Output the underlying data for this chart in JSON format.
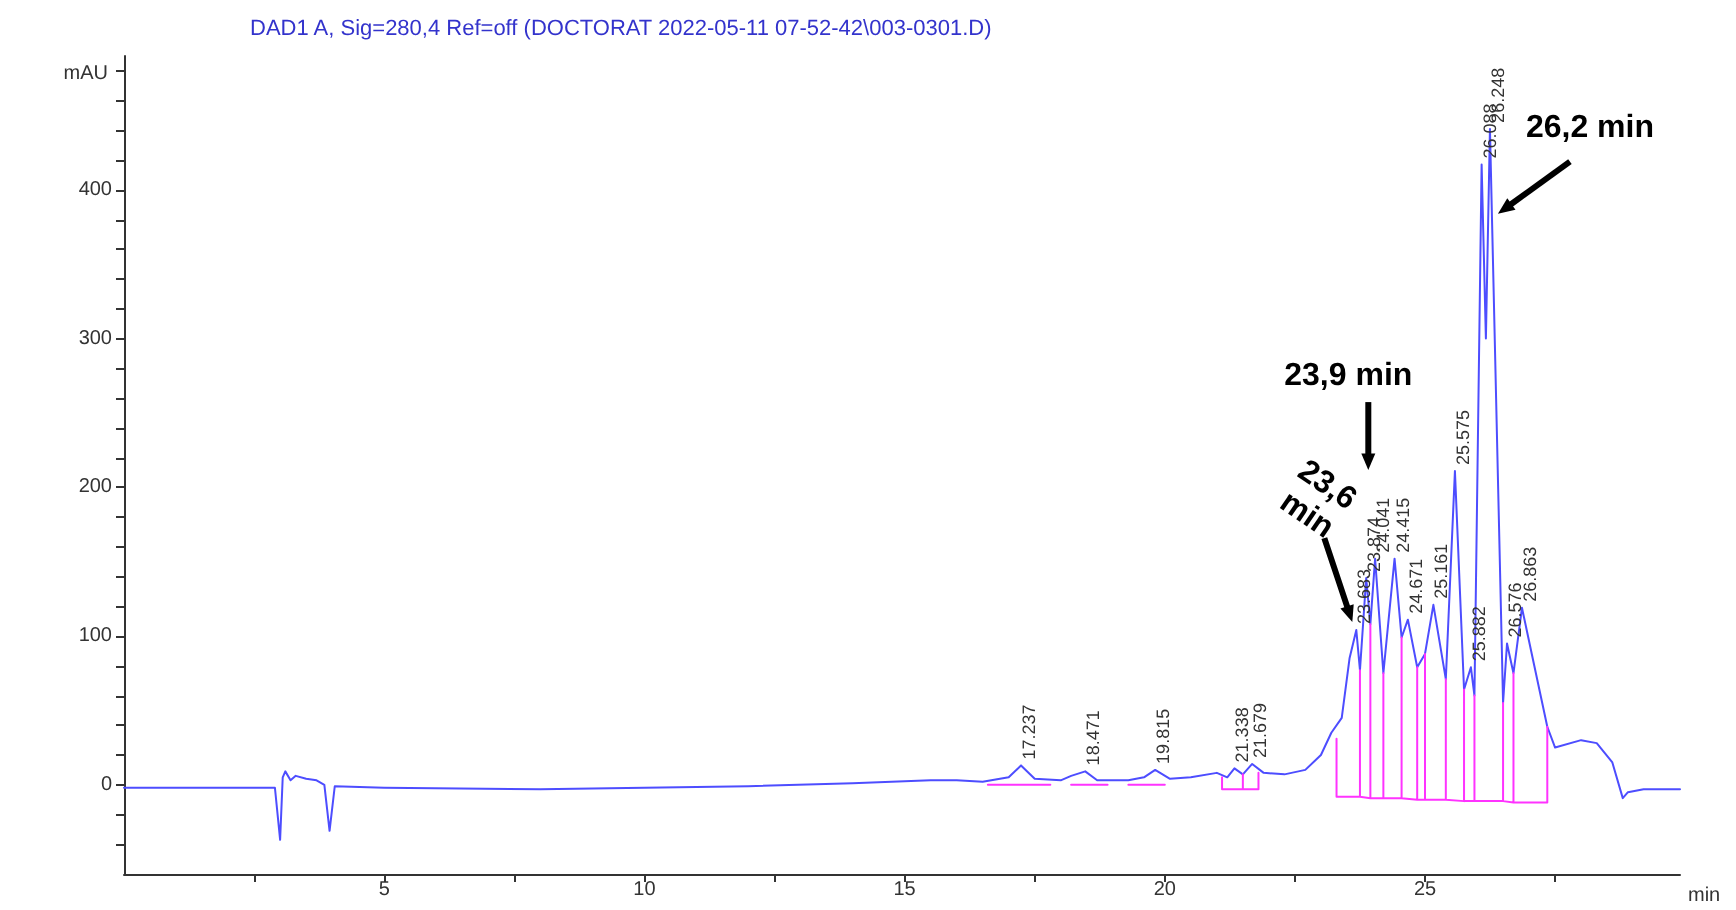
{
  "chart_data": {
    "type": "line",
    "title": "DAD1 A, Sig=280,4 Ref=off (DOCTORAT 2022-05-11 07-52-42\\003-0301.D)",
    "xlabel": "min",
    "ylabel": "mAU",
    "xlim": [
      0,
      29.9
    ],
    "ylim": [
      -60,
      490
    ],
    "xticks": [
      {
        "value": 2.5,
        "label": null
      },
      5,
      {
        "value": 7.5,
        "label": null
      },
      10,
      {
        "value": 12.5,
        "label": null
      },
      15,
      {
        "value": 17.5,
        "label": null
      },
      20,
      {
        "value": 22.5,
        "label": null
      },
      25,
      {
        "value": 27.5,
        "label": null
      }
    ],
    "yticks": [
      {
        "value": -40,
        "label": null
      },
      {
        "value": -20,
        "label": null
      },
      0,
      {
        "value": 20,
        "label": null
      },
      {
        "value": 40,
        "label": null
      },
      {
        "value": 60,
        "label": null
      },
      {
        "value": 80,
        "label": null
      },
      100,
      {
        "value": 120,
        "label": null
      },
      {
        "value": 140,
        "label": null
      },
      {
        "value": 160,
        "label": null
      },
      {
        "value": 180,
        "label": null
      },
      200,
      {
        "value": 220,
        "label": null
      },
      {
        "value": 240,
        "label": null
      },
      {
        "value": 260,
        "label": null
      },
      {
        "value": 280,
        "label": null
      },
      300,
      {
        "value": 320,
        "label": null
      },
      {
        "value": 340,
        "label": null
      },
      {
        "value": 360,
        "label": null
      },
      {
        "value": 380,
        "label": null
      },
      400,
      {
        "value": 420,
        "label": null
      },
      {
        "value": 440,
        "label": null
      },
      {
        "value": 460,
        "label": null
      },
      {
        "value": 480,
        "label": null
      }
    ],
    "grid": false,
    "marker": "none",
    "line_style": "solid",
    "series": [
      {
        "color": "#4d4dff",
        "x": [
          0,
          2.9,
          3.0,
          3.05,
          3.1,
          3.2,
          3.3,
          3.5,
          3.7,
          3.85,
          3.95,
          4.05,
          5,
          8,
          10,
          12,
          14,
          15.5,
          16,
          16.5,
          17,
          17.237,
          17.5,
          18,
          18.2,
          18.471,
          18.7,
          19.3,
          19.6,
          19.815,
          20.1,
          20.5,
          21,
          21.2,
          21.338,
          21.5,
          21.679,
          21.9,
          22.3,
          22.7,
          23.0,
          23.2,
          23.4,
          23.55,
          23.68,
          23.75,
          23.87,
          23.95,
          24.041,
          24.2,
          24.415,
          24.55,
          24.671,
          24.85,
          25.0,
          25.161,
          25.4,
          25.575,
          25.75,
          25.882,
          25.95,
          26.088,
          26.17,
          26.248,
          26.5,
          26.576,
          26.7,
          26.863,
          27.1,
          27.35,
          27.5,
          28.0,
          28.3,
          28.6,
          28.8,
          28.9,
          29.2,
          29.9
        ],
        "values": [
          -2,
          -2,
          -37,
          5,
          9,
          3,
          6,
          4,
          3,
          0,
          -31,
          -1,
          -2,
          -3,
          -2,
          -1,
          1,
          3,
          3,
          2,
          5,
          13,
          4,
          3,
          6,
          9,
          3,
          3,
          5,
          10,
          4,
          5,
          8,
          5,
          11,
          7,
          14,
          8,
          7,
          10,
          20,
          35,
          45,
          85,
          104,
          77,
          139,
          108,
          152,
          75,
          152,
          99,
          111,
          79,
          88,
          121,
          71,
          211,
          64,
          79,
          60,
          417,
          300,
          441,
          55,
          95,
          75,
          119,
          80,
          39,
          25,
          30,
          28,
          15,
          -9,
          -5,
          -3,
          -3
        ]
      },
      {
        "color": "#ff33ff",
        "x": [
          16.6,
          17.8
        ],
        "values": [
          0,
          0
        ]
      },
      {
        "color": "#ff33ff",
        "x": [
          18.2,
          18.9
        ],
        "values": [
          0,
          0
        ]
      },
      {
        "color": "#ff33ff",
        "x": [
          19.3,
          20.0
        ],
        "values": [
          0,
          0
        ]
      },
      {
        "color": "#ff33ff",
        "x": [
          21.1,
          21.1,
          21.5,
          21.5,
          21.5,
          21.8,
          21.8
        ],
        "values": [
          5,
          -3,
          -3,
          7,
          -3,
          -3,
          8
        ]
      },
      {
        "color": "#ff33ff",
        "x": [
          23.3,
          23.3,
          23.75,
          23.75,
          23.75,
          23.95,
          23.95,
          23.95,
          24.2,
          24.2,
          24.2,
          24.55,
          24.55,
          24.55,
          24.85,
          24.85,
          24.85,
          25.0,
          25.0,
          25.0,
          25.4,
          25.4,
          25.4,
          25.75,
          25.75,
          25.75,
          25.95,
          25.95,
          25.95,
          26.5,
          26.5,
          26.5,
          26.7,
          26.7,
          26.7,
          27.35,
          27.35
        ],
        "values": [
          31,
          -8,
          -8,
          77,
          -8,
          -9,
          108,
          -9,
          -9,
          75,
          -9,
          -9,
          99,
          -9,
          -10,
          79,
          -10,
          -10,
          88,
          -10,
          -10,
          71,
          -10,
          -11,
          64,
          -11,
          -11,
          60,
          -11,
          -11,
          55,
          -11,
          -12,
          75,
          -12,
          -12,
          39
        ]
      }
    ],
    "annotations": [
      {
        "text": "23,6 min",
        "x": 23.68,
        "y": 104
      },
      "23,9 min",
      {
        "text": "26,2 min",
        "x": 26.248,
        "y": 384
      },
      {
        "text": "17.237",
        "x": 17.237,
        "y": 13
      },
      {
        "text": "18.471",
        "x": 18.471,
        "y": 9
      },
      {
        "text": "19.815",
        "x": 19.815,
        "y": 10
      },
      {
        "text": "21.338",
        "x": 21.338,
        "y": 11
      },
      {
        "text": "21.679",
        "x": 21.679,
        "y": 14
      },
      {
        "text": "23.683",
        "x": 23.68,
        "y": 104
      },
      {
        "text": "23.874",
        "x": 23.87,
        "y": 139
      },
      {
        "text": "24.041",
        "x": 24.041,
        "y": 152
      },
      {
        "text": "24.415",
        "x": 24.415,
        "y": 152
      },
      {
        "text": "24.671",
        "x": 24.671,
        "y": 111
      },
      {
        "text": "25.161",
        "x": 25.161,
        "y": 121
      },
      {
        "text": "25.575",
        "x": 25.575,
        "y": 211
      },
      {
        "text": "25.882",
        "x": 25.882,
        "y": 79
      },
      {
        "text": "26.088",
        "x": 26.088,
        "y": 417
      },
      {
        "text": "26.248",
        "x": 26.248,
        "y": 441
      },
      {
        "text": "26.576",
        "x": 26.576,
        "y": 95
      },
      {
        "text": "26.863",
        "x": 26.863,
        "y": 119
      }
    ]
  }
}
